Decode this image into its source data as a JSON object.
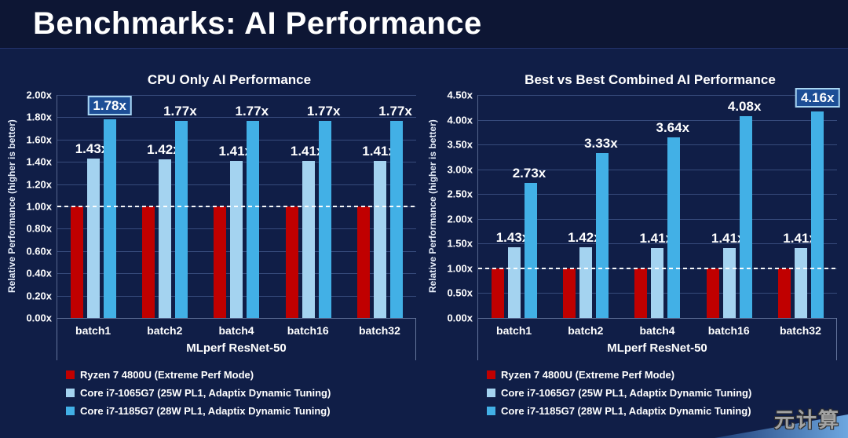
{
  "page_title": "Benchmarks: AI Performance",
  "watermark": "元计算",
  "colors": {
    "background": "#101e47",
    "header_background": "#0d1634",
    "ryzen_red": "#c00000",
    "i7_1065_blue": "#a4d3f0",
    "i7_1185_blue": "#42b0e6",
    "highlight_box_fill": "#1d4e96",
    "highlight_box_border": "#a9d6f2"
  },
  "chart_data": [
    {
      "type": "bar",
      "title": "CPU Only AI Performance",
      "ylabel": "Relative Performance (higher is better)",
      "xlabel": "MLperf ResNet-50",
      "ylim": [
        0,
        2.0
      ],
      "yticks": [
        "0.00x",
        "0.20x",
        "0.40x",
        "0.60x",
        "0.80x",
        "1.00x",
        "1.20x",
        "1.40x",
        "1.60x",
        "1.80x",
        "2.00x"
      ],
      "dashed_line_at": 1.0,
      "grid": true,
      "legend_position": "bottom-left",
      "categories": [
        "batch1",
        "batch2",
        "batch4",
        "batch16",
        "batch32"
      ],
      "series": [
        {
          "name": "Ryzen 7 4800U (Extreme Perf Mode)",
          "color": "#c00000",
          "values": [
            1.0,
            1.0,
            1.0,
            1.0,
            1.0
          ],
          "labels": null
        },
        {
          "name": "Core i7-1065G7 (25W PL1, Adaptix Dynamic Tuning)",
          "color": "#a4d3f0",
          "values": [
            1.43,
            1.42,
            1.41,
            1.41,
            1.41
          ],
          "labels": [
            "1.43x",
            "1.42x",
            "1.41x",
            "1.41x",
            "1.41x"
          ]
        },
        {
          "name": "Core i7-1185G7 (28W PL1, Adaptix Dynamic Tuning)",
          "color": "#42b0e6",
          "values": [
            1.78,
            1.77,
            1.77,
            1.77,
            1.77
          ],
          "labels": [
            "1.78x",
            "1.77x",
            "1.77x",
            "1.77x",
            "1.77x"
          ]
        }
      ],
      "highlight": {
        "series_index": 2,
        "category_index": 0
      }
    },
    {
      "type": "bar",
      "title": "Best vs Best Combined AI Performance",
      "ylabel": "Relative Performance (higher is better)",
      "xlabel": "MLperf ResNet-50",
      "ylim": [
        0,
        4.5
      ],
      "yticks": [
        "0.00x",
        "0.50x",
        "1.00x",
        "1.50x",
        "2.00x",
        "2.50x",
        "3.00x",
        "3.50x",
        "4.00x",
        "4.50x"
      ],
      "dashed_line_at": 1.0,
      "grid": true,
      "legend_position": "bottom-left",
      "categories": [
        "batch1",
        "batch2",
        "batch4",
        "batch16",
        "batch32"
      ],
      "series": [
        {
          "name": "Ryzen 7 4800U (Extreme Perf Mode)",
          "color": "#c00000",
          "values": [
            1.0,
            1.0,
            1.0,
            1.0,
            1.0
          ],
          "labels": null
        },
        {
          "name": "Core i7-1065G7 (25W PL1, Adaptix Dynamic Tuning)",
          "color": "#a4d3f0",
          "values": [
            1.43,
            1.42,
            1.41,
            1.41,
            1.41
          ],
          "labels": [
            "1.43x",
            "1.42x",
            "1.41x",
            "1.41x",
            "1.41x"
          ]
        },
        {
          "name": "Core i7-1185G7 (28W PL1, Adaptix Dynamic Tuning)",
          "color": "#42b0e6",
          "values": [
            2.73,
            3.33,
            3.64,
            4.08,
            4.16
          ],
          "labels": [
            "2.73x",
            "3.33x",
            "3.64x",
            "4.08x",
            "4.16x"
          ]
        }
      ],
      "highlight": {
        "series_index": 2,
        "category_index": 4
      }
    }
  ]
}
